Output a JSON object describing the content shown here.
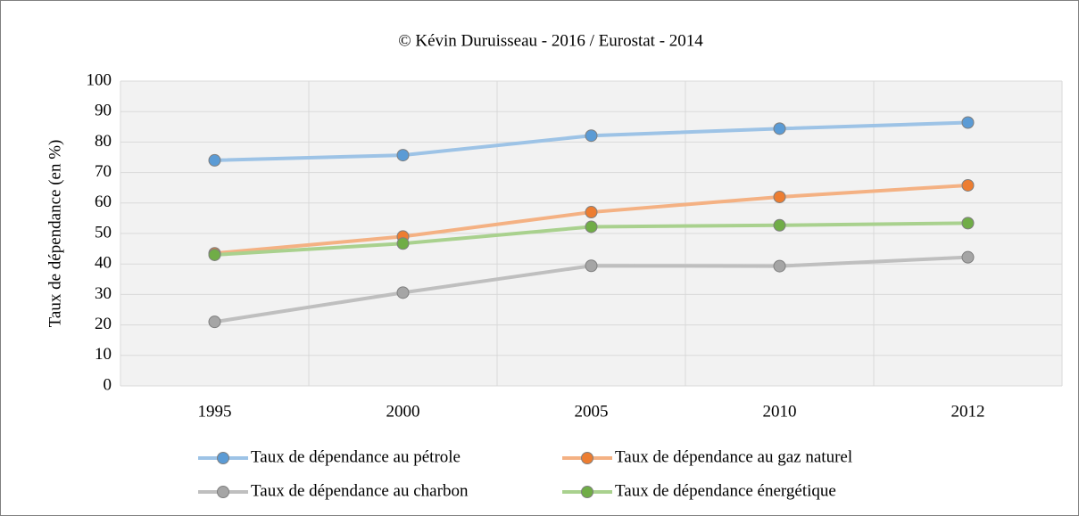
{
  "chart_data": {
    "type": "line",
    "title": "© Kévin Duruisseau - 2016 / Eurostat - 2014",
    "y_label": "Taux de dépendance (en %)",
    "categories": [
      "1995",
      "2000",
      "2005",
      "2010",
      "2012"
    ],
    "series": [
      {
        "name": "Taux de dépendance au pétrole",
        "color": "#9dc3e6",
        "marker_color": "#5b9bd5",
        "values": [
          74,
          75.7,
          82.1,
          84.4,
          86.4
        ]
      },
      {
        "name": "Taux de dépendance au gaz naturel",
        "color": "#f4b183",
        "marker_color": "#ed7d31",
        "values": [
          43.5,
          49,
          57,
          62,
          65.8
        ]
      },
      {
        "name": "Taux de dépendance au charbon",
        "color": "#bfbfbf",
        "marker_color": "#a5a5a5",
        "values": [
          21,
          30.6,
          39.4,
          39.3,
          42.2
        ]
      },
      {
        "name": "Taux de dépendance énergétique",
        "color": "#a9d18e",
        "marker_color": "#70ad47",
        "values": [
          43,
          46.7,
          52.2,
          52.7,
          53.4
        ]
      }
    ],
    "ylim": [
      0,
      100
    ],
    "yticks": [
      0,
      10,
      20,
      30,
      40,
      50,
      60,
      70,
      80,
      90,
      100
    ],
    "grid": true,
    "legend": "bottom"
  }
}
